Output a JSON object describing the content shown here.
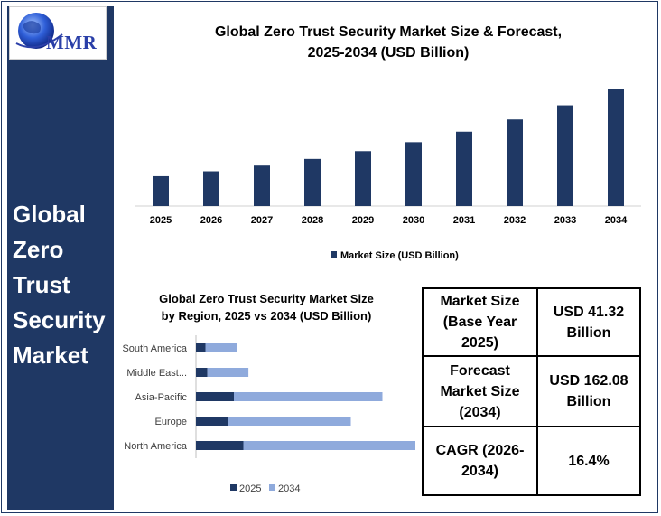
{
  "logo": {
    "text": "MMR"
  },
  "sidebar": {
    "title_lines": [
      "Global",
      "Zero",
      "Trust",
      "Security",
      "Market"
    ]
  },
  "chart_data": [
    {
      "type": "bar",
      "title_lines": [
        "Global Zero Trust Security Market Size & Forecast,",
        "2025-2034 (USD Billion)"
      ],
      "categories": [
        "2025",
        "2026",
        "2027",
        "2028",
        "2029",
        "2030",
        "2031",
        "2032",
        "2033",
        "2034"
      ],
      "series": [
        {
          "name": "Market Size (USD Billion)",
          "values": [
            41.32,
            48.1,
            56.0,
            65.2,
            75.9,
            88.3,
            102.8,
            119.7,
            139.3,
            162.08
          ]
        }
      ],
      "ylim": [
        0,
        170
      ],
      "grid": false,
      "legend": "bottom",
      "colors": {
        "bar": "#1f3864"
      }
    },
    {
      "type": "bar",
      "orientation": "horizontal",
      "stacked": true,
      "title_lines": [
        "Global Zero Trust Security Market Size",
        "by Region, 2025 vs 2034 (USD Billion)"
      ],
      "categories": [
        "South America",
        "Middle East...",
        "Asia-Pacific",
        "Europe",
        "North America"
      ],
      "series": [
        {
          "name": "2025",
          "values": [
            1.5,
            1.8,
            6.0,
            5.0,
            7.5
          ]
        },
        {
          "name": "2034",
          "values": [
            5.0,
            6.5,
            23.5,
            19.5,
            29.5
          ]
        }
      ],
      "xlim": [
        0,
        40
      ],
      "legend": "bottom",
      "colors": {
        "2025": "#1f3864",
        "2034": "#8faadc"
      }
    }
  ],
  "stats": [
    {
      "key": "Market Size (Base Year 2025)",
      "value": "USD 41.32 Billion"
    },
    {
      "key": "Forecast Market Size (2034)",
      "value": "USD 162.08 Billion"
    },
    {
      "key": "CAGR (2026-2034)",
      "value": "16.4%"
    }
  ]
}
